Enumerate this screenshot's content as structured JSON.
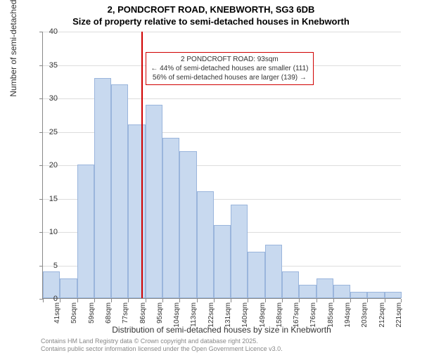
{
  "title": {
    "line1": "2, PONDCROFT ROAD, KNEBWORTH, SG3 6DB",
    "line2": "Size of property relative to semi-detached houses in Knebworth"
  },
  "axes": {
    "ylabel": "Number of semi-detached properties",
    "xlabel": "Distribution of semi-detached houses by size in Knebworth",
    "ylim": [
      0,
      40
    ],
    "ytick_step": 5,
    "yticks": [
      0,
      5,
      10,
      15,
      20,
      25,
      30,
      35,
      40
    ],
    "grid_color": "#dddddd",
    "axis_color": "#888888",
    "label_fontsize": 12,
    "tick_fontsize": 11
  },
  "histogram": {
    "type": "bar",
    "bar_fill": "#c8d9ef",
    "bar_stroke": "#9ab5dc",
    "categories": [
      "41sqm",
      "50sqm",
      "59sqm",
      "68sqm",
      "77sqm",
      "86sqm",
      "95sqm",
      "104sqm",
      "113sqm",
      "122sqm",
      "131sqm",
      "140sqm",
      "149sqm",
      "158sqm",
      "167sqm",
      "176sqm",
      "185sqm",
      "194sqm",
      "203sqm",
      "212sqm",
      "221sqm"
    ],
    "values": [
      4,
      3,
      20,
      33,
      32,
      26,
      29,
      24,
      22,
      16,
      11,
      14,
      7,
      8,
      4,
      2,
      3,
      2,
      1,
      1,
      1
    ]
  },
  "reference_line": {
    "value_sqm": 93,
    "color": "#d00000"
  },
  "annotation": {
    "line1": "2 PONDCROFT ROAD: 93sqm",
    "line2": "← 44% of semi-detached houses are smaller (111)",
    "line3": "56% of semi-detached houses are larger (139) →",
    "border_color": "#d00000",
    "fontsize": 10
  },
  "footnote": {
    "line1": "Contains HM Land Registry data © Crown copyright and database right 2025.",
    "line2": "Contains public sector information licensed under the Open Government Licence v3.0."
  },
  "styling": {
    "background_color": "#ffffff",
    "title_fontsize": 13,
    "title_fontweight": "bold",
    "footnote_color": "#888888",
    "footnote_fontsize": 9
  }
}
